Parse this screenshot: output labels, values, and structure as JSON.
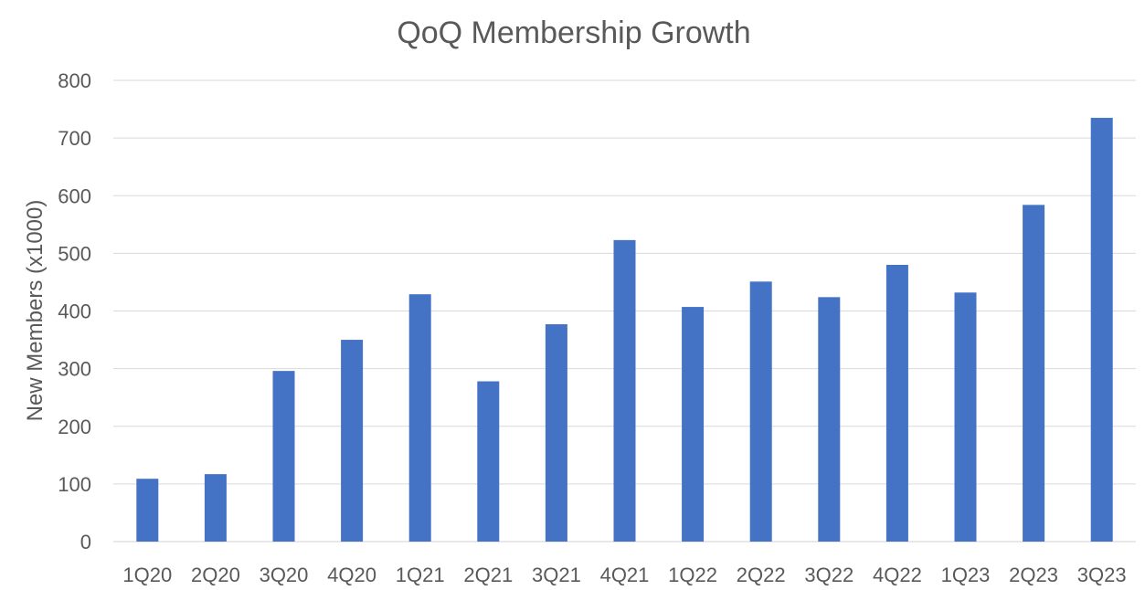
{
  "chart_data": {
    "type": "bar",
    "title": "QoQ Membership Growth",
    "xlabel": "",
    "ylabel": "New Members (x1000)",
    "ylim": [
      0,
      800
    ],
    "yticks": [
      0,
      100,
      200,
      300,
      400,
      500,
      600,
      700,
      800
    ],
    "grid": true,
    "legend": "none",
    "categories": [
      "1Q20",
      "2Q20",
      "3Q20",
      "4Q20",
      "1Q21",
      "2Q21",
      "3Q21",
      "4Q21",
      "1Q22",
      "2Q22",
      "3Q22",
      "4Q22",
      "1Q23",
      "2Q23",
      "3Q23"
    ],
    "series": [
      {
        "values": [
          109,
          117,
          296,
          350,
          429,
          278,
          377,
          523,
          407,
          451,
          424,
          480,
          432,
          584,
          735
        ],
        "color": "#4472c4"
      }
    ]
  }
}
